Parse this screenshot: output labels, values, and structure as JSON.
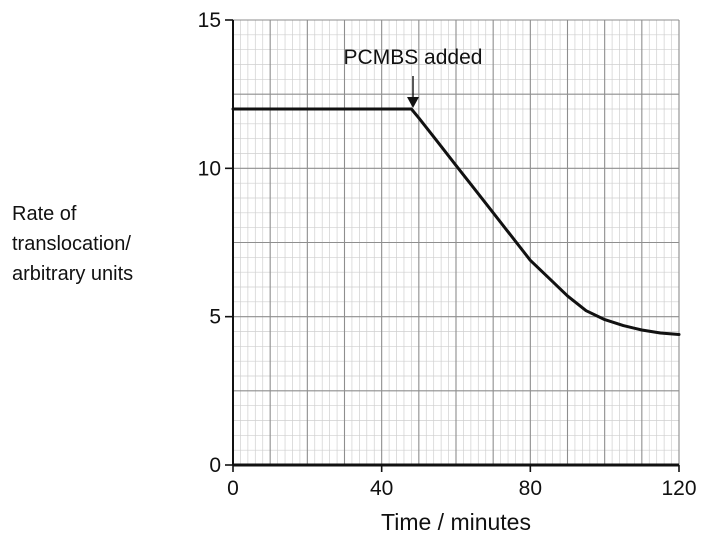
{
  "chart_data": {
    "type": "line",
    "title": "",
    "xlabel": "Time / minutes",
    "ylabel_lines": [
      "Rate of",
      "translocation/",
      "arbitrary units"
    ],
    "xlim": [
      0,
      120
    ],
    "ylim": [
      0,
      15
    ],
    "x_ticks": [
      0,
      40,
      80,
      120
    ],
    "y_ticks": [
      0,
      5,
      10,
      15
    ],
    "grid": true,
    "series": [
      {
        "x": [
          0,
          48,
          50,
          55,
          60,
          65,
          70,
          75,
          80,
          85,
          90,
          95,
          100,
          105,
          110,
          115,
          120
        ],
        "y": [
          12,
          12,
          11.7,
          10.9,
          10.1,
          9.3,
          8.5,
          7.7,
          6.9,
          6.3,
          5.7,
          5.2,
          4.9,
          4.7,
          4.55,
          4.45,
          4.4
        ]
      }
    ],
    "annotations": [
      {
        "text": "PCMBS added",
        "x": 48,
        "y": 12
      }
    ]
  }
}
